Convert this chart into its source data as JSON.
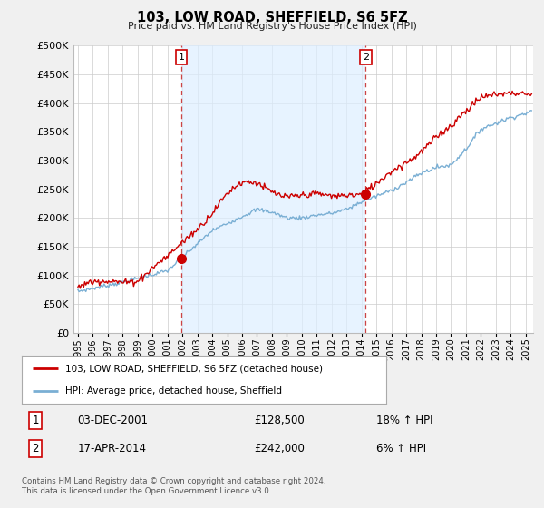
{
  "title": "103, LOW ROAD, SHEFFIELD, S6 5FZ",
  "subtitle": "Price paid vs. HM Land Registry's House Price Index (HPI)",
  "ylim": [
    0,
    500000
  ],
  "yticks": [
    0,
    50000,
    100000,
    150000,
    200000,
    250000,
    300000,
    350000,
    400000,
    450000,
    500000
  ],
  "xlim_start": 1994.7,
  "xlim_end": 2025.5,
  "xtick_years": [
    1995,
    1996,
    1997,
    1998,
    1999,
    2000,
    2001,
    2002,
    2003,
    2004,
    2005,
    2006,
    2007,
    2008,
    2009,
    2010,
    2011,
    2012,
    2013,
    2014,
    2015,
    2016,
    2017,
    2018,
    2019,
    2020,
    2021,
    2022,
    2023,
    2024,
    2025
  ],
  "sale1_x": 2001.92,
  "sale1_y": 128500,
  "sale1_label": "1",
  "sale1_date": "03-DEC-2001",
  "sale1_price": "£128,500",
  "sale1_hpi": "18% ↑ HPI",
  "sale2_x": 2014.29,
  "sale2_y": 242000,
  "sale2_label": "2",
  "sale2_date": "17-APR-2014",
  "sale2_price": "£242,000",
  "sale2_hpi": "6% ↑ HPI",
  "line1_color": "#cc0000",
  "line2_color": "#7aafd4",
  "shade_color": "#ddeeff",
  "marker_color": "#cc0000",
  "vline_color": "#cc4444",
  "grid_color": "#cccccc",
  "bg_color": "#f0f0f0",
  "plot_bg": "#ffffff",
  "legend_line1": "103, LOW ROAD, SHEFFIELD, S6 5FZ (detached house)",
  "legend_line2": "HPI: Average price, detached house, Sheffield",
  "footnote": "Contains HM Land Registry data © Crown copyright and database right 2024.\nThis data is licensed under the Open Government Licence v3.0."
}
